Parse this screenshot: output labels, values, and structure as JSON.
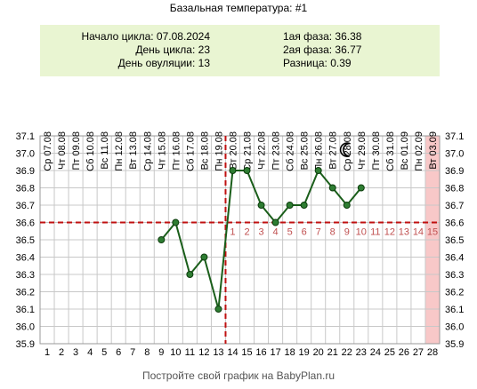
{
  "header": {
    "title": "Базальная температура: #1"
  },
  "info": {
    "cycle_start": "Начало цикла: 07.08.2024",
    "cycle_day": "День цикла: 23",
    "ovulation_day": "День овуляции: 13",
    "phase1": "1ая фаза: 36.38",
    "phase2": "2ая фаза: 36.77",
    "difference": "Разница: 0.39"
  },
  "footer": "Постройте свой график на BabyPlan.ru",
  "colors": {
    "line": "#1a5e1a",
    "point": "#2e7d32",
    "ovulation_marker": "#c01010",
    "luteal_day_label": "#c05050",
    "last_day_band": "#f8c8c8",
    "grid": "#c8c8c8"
  },
  "icons": {
    "moon": "crescent-moon-icon"
  },
  "chart_data": {
    "type": "line",
    "title": "Базальная температура: #1",
    "xlabel": "",
    "ylabel": "",
    "x": [
      1,
      2,
      3,
      4,
      5,
      6,
      7,
      8,
      9,
      10,
      11,
      12,
      13,
      14,
      15,
      16,
      17,
      18,
      19,
      20,
      21,
      22,
      23,
      24,
      25,
      26,
      27,
      28
    ],
    "dates": [
      "07.08",
      "08.08",
      "09.08",
      "10.08",
      "11.08",
      "12.08",
      "13.08",
      "14.08",
      "15.08",
      "16.08",
      "17.08",
      "18.08",
      "19.08",
      "20.08",
      "21.08",
      "22.08",
      "23.08",
      "24.08",
      "25.08",
      "26.08",
      "27.08",
      "28.08",
      "29.08",
      "30.08",
      "31.08",
      "01.09",
      "02.09",
      "03.09"
    ],
    "weekdays": [
      "Ср",
      "Чт",
      "Пт",
      "Сб",
      "Вс",
      "Пн",
      "Вт",
      "Ср",
      "Чт",
      "Пт",
      "Сб",
      "Вс",
      "Пн",
      "Вт",
      "Ср",
      "Чт",
      "Пт",
      "Сб",
      "Вс",
      "Пн",
      "Вт",
      "Ср",
      "Чт",
      "Пт",
      "Сб",
      "Вс",
      "Пн",
      "Вт"
    ],
    "series": [
      {
        "values": [
          null,
          null,
          null,
          null,
          null,
          null,
          null,
          null,
          36.5,
          36.6,
          36.3,
          36.4,
          36.1,
          36.9,
          36.9,
          36.7,
          36.6,
          36.7,
          36.7,
          36.9,
          36.8,
          36.7,
          36.8,
          null,
          null,
          null,
          null,
          null
        ]
      }
    ],
    "ylim": [
      35.9,
      37.1
    ],
    "yticks": [
      "35.9",
      "36.0",
      "36.1",
      "36.2",
      "36.3",
      "36.4",
      "36.5",
      "36.6",
      "36.7",
      "36.8",
      "36.9",
      "37.0",
      "37.1"
    ],
    "coverline": 36.6,
    "ovulation_day": 13,
    "luteal_day_labels": [
      "1",
      "2",
      "3",
      "4",
      "5",
      "6",
      "7",
      "8",
      "9",
      "10",
      "11",
      "12",
      "13",
      "14",
      "15"
    ],
    "highlight_day": 28,
    "moon_day": 22,
    "moon_value": 37.02,
    "grid": true
  }
}
